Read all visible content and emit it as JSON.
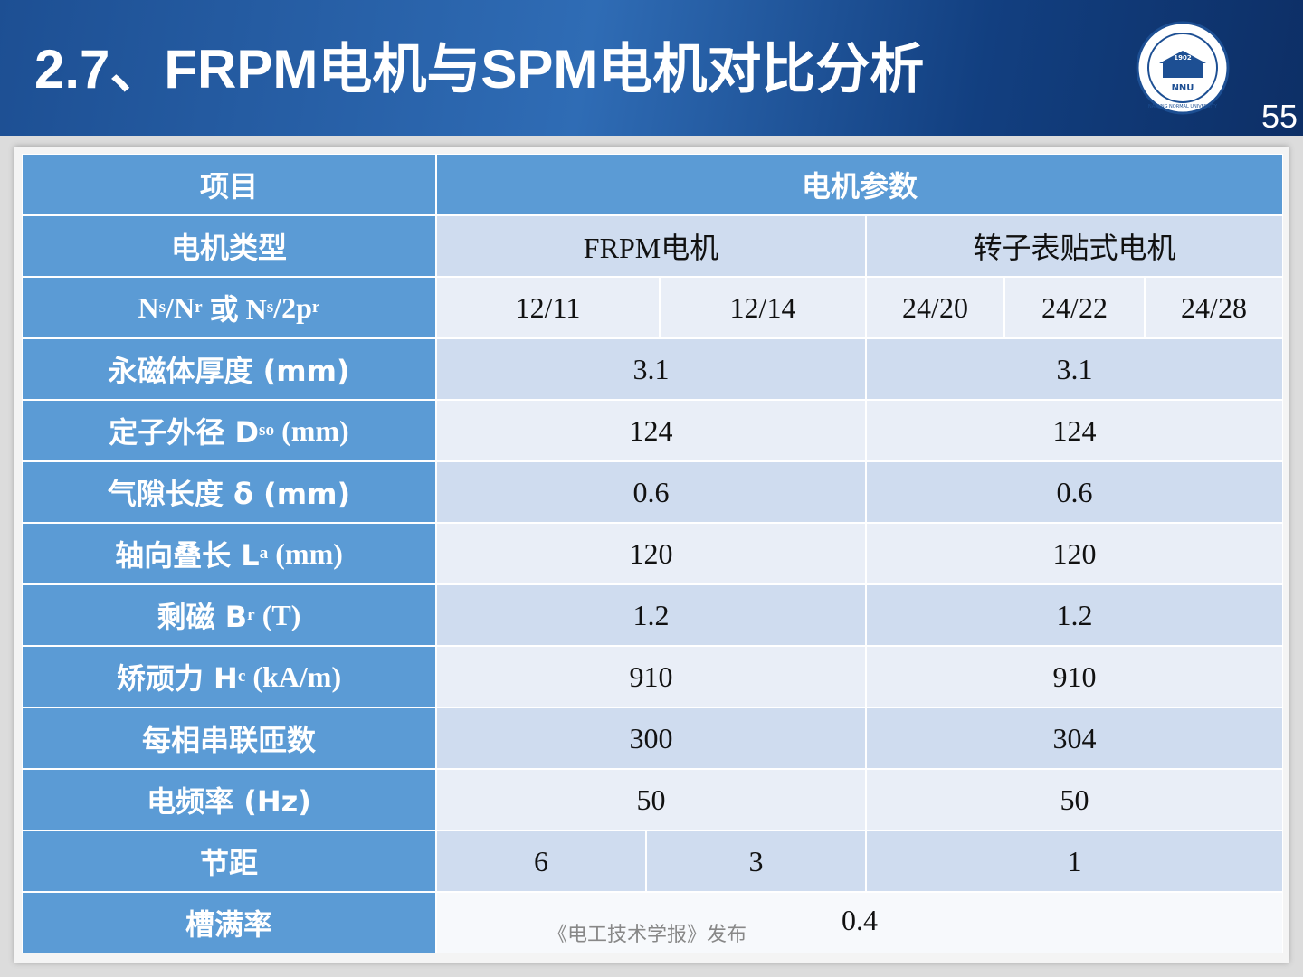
{
  "header": {
    "title": "2.7、FRPM电机与SPM电机对比分析",
    "page_number": "55",
    "logo": {
      "year": "1902",
      "abbr": "NNU",
      "name": "NANJING NORMAL UNIVERSITY"
    }
  },
  "table": {
    "header": [
      "项目",
      "电机参数"
    ],
    "rows": [
      {
        "label": [
          "电机类型"
        ],
        "cells": [
          "FRPM电机",
          "转子表贴式电机"
        ]
      },
      {
        "label": [
          "N",
          {
            "sub": "s"
          },
          "/N",
          {
            "sub": "r"
          },
          " 或 N",
          {
            "sub": "s"
          },
          "/2p",
          {
            "sub": "r"
          }
        ],
        "cells": [
          "12/11",
          "12/14",
          "24/20",
          "24/22",
          "24/28"
        ]
      },
      {
        "label": [
          "永磁体厚度 (mm)"
        ],
        "cells": [
          "3.1",
          "3.1"
        ]
      },
      {
        "label": [
          "定子外径 D",
          {
            "sub": "so"
          },
          " (mm)"
        ],
        "cells": [
          "124",
          "124"
        ]
      },
      {
        "label": [
          "气隙长度 δ (mm)"
        ],
        "cells": [
          "0.6",
          "0.6"
        ]
      },
      {
        "label": [
          "轴向叠长 L",
          {
            "sub": "a"
          },
          " (mm)"
        ],
        "cells": [
          "120",
          "120"
        ]
      },
      {
        "label": [
          "剩磁 B",
          {
            "sub": "r"
          },
          " (T)"
        ],
        "cells": [
          "1.2",
          "1.2"
        ]
      },
      {
        "label": [
          "矫顽力 H",
          {
            "sub": "c"
          },
          " (kA/m)"
        ],
        "cells": [
          "910",
          "910"
        ]
      },
      {
        "label": [
          "每相串联匝数"
        ],
        "cells": [
          "300",
          "304"
        ]
      },
      {
        "label": [
          "电频率 (Hz)"
        ],
        "cells": [
          "50",
          "50"
        ]
      },
      {
        "label": [
          "节距"
        ],
        "cells": [
          "6",
          "3",
          "1"
        ]
      },
      {
        "label": [
          "槽满率"
        ],
        "cells": [
          "0.4"
        ]
      }
    ]
  },
  "watermark": "《电工技术学报》发布"
}
